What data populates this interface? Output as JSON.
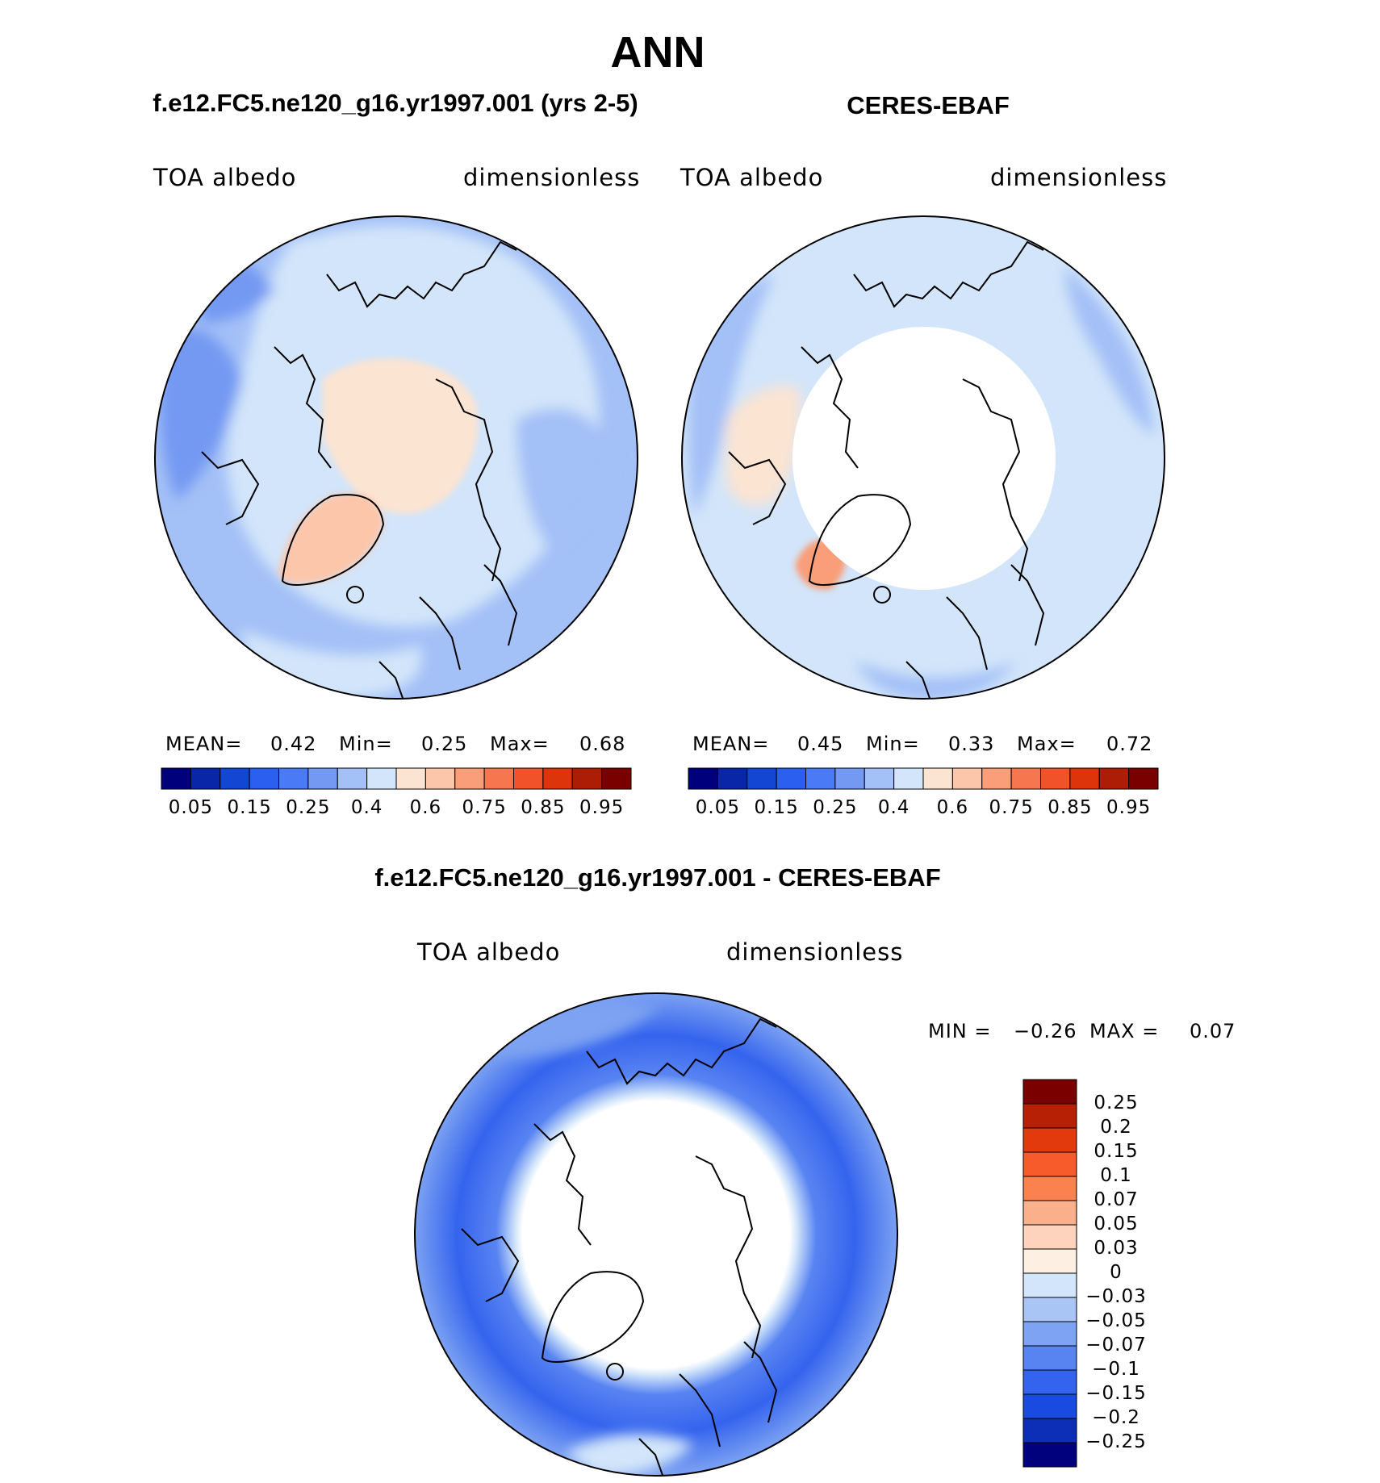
{
  "title": "ANN",
  "panels": [
    {
      "name": "model",
      "title": "f.e12.FC5.ne120_g16.yr1997.001 (yrs 2-5)",
      "variable": "TOA albedo",
      "units": "dimensionless",
      "stats": {
        "mean_label": "MEAN=",
        "mean": "0.42",
        "min_label": "Min=",
        "min": "0.25",
        "max_label": "Max=",
        "max": "0.68"
      }
    },
    {
      "name": "obs",
      "title": "CERES-EBAF",
      "variable": "TOA albedo",
      "units": "dimensionless",
      "stats": {
        "mean_label": "MEAN=",
        "mean": "0.45",
        "min_label": "Min=",
        "min": "0.33",
        "max_label": "Max=",
        "max": "0.72"
      }
    }
  ],
  "abs_colorbar": {
    "colors": [
      "#00007d",
      "#0a26a8",
      "#1446d4",
      "#2a5ff0",
      "#4a7af5",
      "#7399f2",
      "#a3c0f7",
      "#d2e5fa",
      "#fce4d2",
      "#fcc6ab",
      "#f99e78",
      "#f6774f",
      "#f2522a",
      "#dd340c",
      "#ad1d06",
      "#7a0000"
    ],
    "tick_labels": [
      "0.05",
      "0.15",
      "0.25",
      "0.4",
      "0.6",
      "0.75",
      "0.85",
      "0.95"
    ]
  },
  "diff": {
    "title": "f.e12.FC5.ne120_g16.yr1997.001 - CERES-EBAF",
    "variable": "TOA albedo",
    "units": "dimensionless",
    "min_label": "MIN =",
    "min": "−0.26",
    "max_label": "MAX =",
    "max": "0.07",
    "colorbar": {
      "colors": [
        "#7a0000",
        "#b82006",
        "#e23a0c",
        "#f75a2b",
        "#f9824f",
        "#fbb08c",
        "#fdd3bd",
        "#fdefe2",
        "#d2e5fa",
        "#a8c5f6",
        "#7ea3f2",
        "#5884f2",
        "#3464ee",
        "#1a4be0",
        "#0d2fb8",
        "#01017d"
      ],
      "tick_labels": [
        "0.25",
        "0.2",
        "0.15",
        "0.1",
        "0.07",
        "0.05",
        "0.03",
        "0",
        "−0.03",
        "−0.05",
        "−0.07",
        "−0.1",
        "−0.15",
        "−0.2",
        "−0.25"
      ]
    }
  }
}
